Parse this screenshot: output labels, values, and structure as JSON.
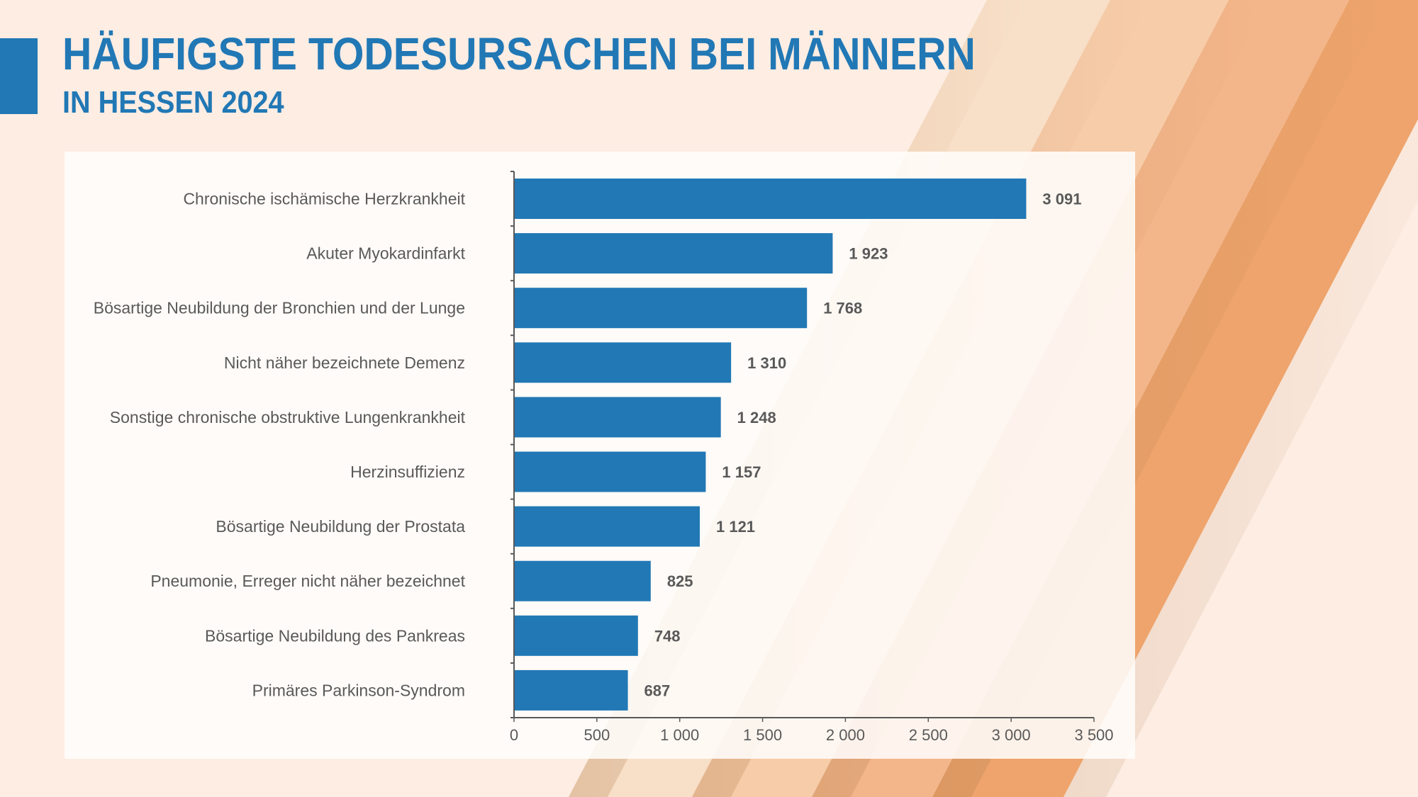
{
  "header": {
    "title": "HÄUFIGSTE TODESURSACHEN BEI MÄNNERN",
    "subtitle": "IN HESSEN 2024"
  },
  "colors": {
    "accent": "#2178b5",
    "bar": "#2178b5",
    "text": "#595959",
    "background": "#fdede3",
    "stripes": [
      "#f8dfc7",
      "#f7cca9",
      "#f3b68a",
      "#eea46c"
    ]
  },
  "chart_data": {
    "type": "bar",
    "orientation": "horizontal",
    "title": "HÄUFIGSTE TODESURSACHEN BEI MÄNNERN",
    "subtitle": "IN HESSEN 2024",
    "xlabel": "",
    "ylabel": "",
    "categories": [
      "Chronische ischämische Herzkrankheit",
      "Akuter Myokardinfarkt",
      "Bösartige Neubildung der Bronchien und der Lunge",
      "Nicht näher bezeichnete Demenz",
      "Sonstige chronische obstruktive Lungenkrankheit",
      "Herzinsuffizienz",
      "Bösartige Neubildung der Prostata",
      "Pneumonie, Erreger nicht näher bezeichnet",
      "Bösartige Neubildung des Pankreas",
      "Primäres Parkinson-Syndrom"
    ],
    "values": [
      3091,
      1923,
      1768,
      1310,
      1248,
      1157,
      1121,
      825,
      748,
      687
    ],
    "value_labels": [
      "3 091",
      "1 923",
      "1 768",
      "1 310",
      "1 248",
      "1 157",
      "1 121",
      "825",
      "748",
      "687"
    ],
    "xlim": [
      0,
      3500
    ],
    "xticks": [
      0,
      500,
      1000,
      1500,
      2000,
      2500,
      3000,
      3500
    ],
    "xtick_labels": [
      "0",
      "500",
      "1 000",
      "1 500",
      "2 000",
      "2 500",
      "3 000",
      "3 500"
    ],
    "grid": false,
    "legend": "none"
  }
}
